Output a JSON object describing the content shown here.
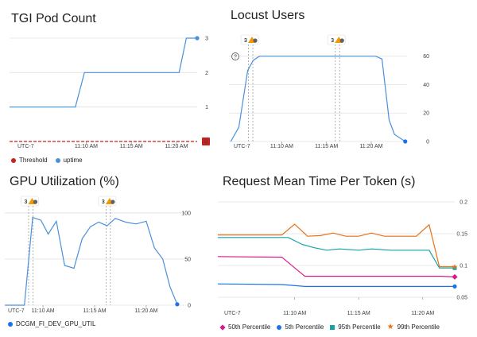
{
  "colors": {
    "blue": "#4a90d9",
    "dark_blue": "#1a73e8",
    "red": "#c5221f",
    "magenta": "#d81b8c",
    "teal": "#12a4a4",
    "orange": "#e8711a",
    "grid": "#e0e0e0",
    "badge": "#f29900"
  },
  "chart_data": [
    {
      "id": "tgi",
      "type": "line",
      "title": "TGI Pod Count",
      "timezone": "UTC-7",
      "xticks": [
        "11:10 AM",
        "11:15 AM",
        "11:20 AM"
      ],
      "xticks_minutes": [
        10,
        15,
        20
      ],
      "xlim": [
        1.5,
        22.3
      ],
      "ylim": [
        0,
        3
      ],
      "yticks": [
        1,
        2,
        3
      ],
      "baseline_value": "0",
      "series": [
        {
          "name": "Threshold",
          "color": "#c5221f",
          "dashed": true,
          "points": [
            [
              1.5,
              0
            ],
            [
              22.3,
              0
            ]
          ]
        },
        {
          "name": "uptime",
          "color": "#4a90d9",
          "points": [
            [
              1.5,
              1
            ],
            [
              8.8,
              1
            ],
            [
              9.8,
              2
            ],
            [
              20.3,
              2
            ],
            [
              21.1,
              3
            ],
            [
              22.3,
              3
            ]
          ]
        }
      ],
      "legend": [
        "Threshold",
        "uptime"
      ]
    },
    {
      "id": "locust",
      "type": "line",
      "title": "Locust Users",
      "timezone": "UTC-7",
      "xticks": [
        "11:10 AM",
        "11:15 AM",
        "11:20 AM"
      ],
      "xticks_minutes": [
        10,
        15,
        20
      ],
      "xlim": [
        4.1,
        24.0
      ],
      "ylim": [
        0,
        66
      ],
      "yticks": [
        0,
        20,
        40,
        60
      ],
      "annotations": [
        {
          "label": "3",
          "x": 6.5
        },
        {
          "label": "3",
          "x": 16.2
        }
      ],
      "series": [
        {
          "name": "users",
          "color": "#4a90d9",
          "points": [
            [
              4.3,
              0
            ],
            [
              5.2,
              10
            ],
            [
              6.2,
              50
            ],
            [
              6.8,
              57
            ],
            [
              7.5,
              60
            ],
            [
              20.5,
              60
            ],
            [
              21.2,
              58
            ],
            [
              22.0,
              15
            ],
            [
              22.6,
              5
            ],
            [
              23.8,
              0
            ]
          ]
        }
      ]
    },
    {
      "id": "gpu",
      "type": "line",
      "title": "GPU Utilization (%)",
      "xticks": [
        "11:10 AM",
        "11:15 AM",
        "11:20 AM"
      ],
      "xticks_minutes": [
        10,
        15,
        20
      ],
      "xlim": [
        6.3,
        23.7
      ],
      "ylim": [
        0,
        105
      ],
      "yticks": [
        0,
        50,
        100
      ],
      "annotations": [
        {
          "label": "3",
          "x": 8.8
        },
        {
          "label": "3",
          "x": 16.3
        }
      ],
      "series": [
        {
          "name": "DCGM_FI_DEV_GPU_UTIL",
          "color": "#4a90d9",
          "points": [
            [
              6.3,
              0
            ],
            [
              8.2,
              0
            ],
            [
              9.0,
              95
            ],
            [
              9.8,
              92
            ],
            [
              10.5,
              77
            ],
            [
              11.3,
              91
            ],
            [
              12.1,
              43
            ],
            [
              13.0,
              40
            ],
            [
              13.8,
              72
            ],
            [
              14.6,
              85
            ],
            [
              15.4,
              90
            ],
            [
              16.2,
              86
            ],
            [
              17.0,
              94
            ],
            [
              18.0,
              90
            ],
            [
              19.0,
              88
            ],
            [
              20.0,
              91
            ],
            [
              20.8,
              62
            ],
            [
              21.6,
              50
            ],
            [
              22.3,
              20
            ],
            [
              23.0,
              1
            ]
          ]
        }
      ],
      "legend": [
        "DCGM_FI_DEV_GPU_UTIL"
      ]
    },
    {
      "id": "rmt",
      "type": "line",
      "title": "Request Mean Time Per Token (s)",
      "timezone": "UTC-7",
      "xticks": [
        "11:10 AM",
        "11:15 AM",
        "11:20 AM"
      ],
      "xticks_minutes": [
        10,
        15,
        20
      ],
      "xlim": [
        4.0,
        22.5
      ],
      "ylim": [
        0.05,
        0.2
      ],
      "yticks": [
        0.05,
        0.1,
        0.15,
        0.2
      ],
      "ytick_labels": [
        "0.05",
        "0.1",
        "0.15",
        "0.2"
      ],
      "series": [
        {
          "name": "50th Percentile",
          "color": "#d81b8c",
          "marker": "diamond",
          "points": [
            [
              4.0,
              0.114
            ],
            [
              9.0,
              0.113
            ],
            [
              10.8,
              0.083
            ],
            [
              21.5,
              0.083
            ],
            [
              22.5,
              0.082
            ]
          ]
        },
        {
          "name": "5th Percentile",
          "color": "#1a73e8",
          "marker": "circle",
          "points": [
            [
              4.0,
              0.071
            ],
            [
              9.0,
              0.07
            ],
            [
              10.8,
              0.067
            ],
            [
              21.5,
              0.067
            ],
            [
              22.5,
              0.067
            ]
          ]
        },
        {
          "name": "95th Percentile",
          "color": "#12a4a4",
          "marker": "square",
          "points": [
            [
              4.0,
              0.144
            ],
            [
              9.5,
              0.144
            ],
            [
              10.6,
              0.133
            ],
            [
              11.5,
              0.128
            ],
            [
              12.5,
              0.124
            ],
            [
              13.5,
              0.126
            ],
            [
              15.0,
              0.124
            ],
            [
              16.0,
              0.126
            ],
            [
              17.5,
              0.124
            ],
            [
              18.5,
              0.124
            ],
            [
              20.5,
              0.124
            ],
            [
              21.3,
              0.096
            ],
            [
              22.5,
              0.096
            ]
          ]
        },
        {
          "name": "99th Percentile",
          "color": "#e8711a",
          "marker": "star",
          "points": [
            [
              4.0,
              0.148
            ],
            [
              9.0,
              0.148
            ],
            [
              10.0,
              0.165
            ],
            [
              11.0,
              0.146
            ],
            [
              12.0,
              0.147
            ],
            [
              13.0,
              0.151
            ],
            [
              14.0,
              0.146
            ],
            [
              15.0,
              0.146
            ],
            [
              16.0,
              0.151
            ],
            [
              17.0,
              0.146
            ],
            [
              18.0,
              0.146
            ],
            [
              19.5,
              0.146
            ],
            [
              20.5,
              0.164
            ],
            [
              21.3,
              0.098
            ],
            [
              22.5,
              0.098
            ]
          ]
        }
      ],
      "legend": [
        "50th Percentile",
        "5th Percentile",
        "95th Percentile",
        "99th Percentile"
      ]
    }
  ]
}
